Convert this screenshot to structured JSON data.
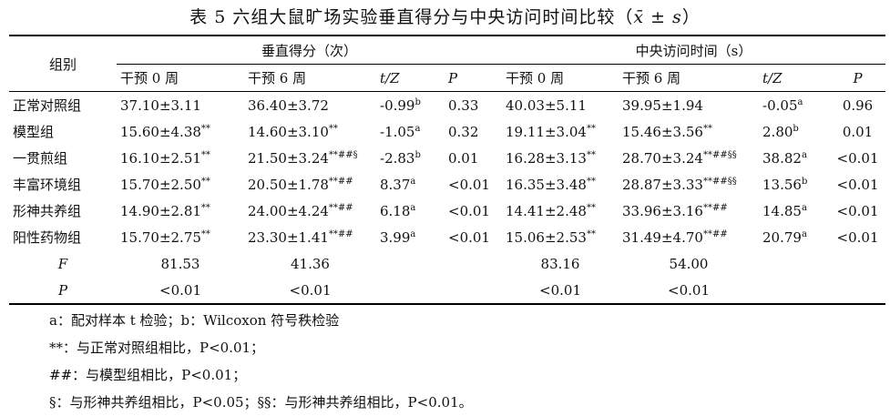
{
  "title": "表 5  六组大鼠旷场实验垂直得分与中央访问时间比较（x̄ ± s）",
  "header": {
    "group": "组别",
    "vertical": "垂直得分（次）",
    "central": "中央访问时间（s）",
    "sub": [
      "干预 0 周",
      "干预 6 周",
      "t/Z",
      "P",
      "干预 0 周",
      "干预 6 周",
      "t/Z",
      "P"
    ]
  },
  "rows": [
    {
      "name": "正常对照组",
      "v0": "37.10±3.11",
      "v0s": "",
      "v6": "36.40±3.72",
      "v6s": "",
      "vt": "-0.99",
      "vts": "b",
      "vp": "0.33",
      "c0": "40.03±5.11",
      "c0s": "",
      "c6": "39.95±1.94",
      "c6s": "",
      "ct": "-0.05",
      "cts": "a",
      "cp": "0.96"
    },
    {
      "name": "模型组",
      "v0": "15.60±4.38",
      "v0s": "**",
      "v6": "14.60±3.10",
      "v6s": "**",
      "vt": "-1.05",
      "vts": "a",
      "vp": "0.32",
      "c0": "19.11±3.04",
      "c0s": "**",
      "c6": "15.46±3.56",
      "c6s": "**",
      "ct": "2.80",
      "cts": "b",
      "cp": "0.01"
    },
    {
      "name": "一贯煎组",
      "v0": "16.10±2.51",
      "v0s": "**",
      "v6": "21.50±3.24",
      "v6s": "**##§",
      "vt": "-2.83",
      "vts": "b",
      "vp": "0.01",
      "c0": "16.28±3.13",
      "c0s": "**",
      "c6": "28.70±3.24",
      "c6s": "**##§§",
      "ct": "38.82",
      "cts": "a",
      "cp": "<0.01"
    },
    {
      "name": "丰富环境组",
      "v0": "15.70±2.50",
      "v0s": "**",
      "v6": "20.50±1.78",
      "v6s": "**##",
      "vt": "8.37",
      "vts": "a",
      "vp": "<0.01",
      "c0": "16.35±3.48",
      "c0s": "**",
      "c6": "28.87±3.33",
      "c6s": "**##§§",
      "ct": "13.56",
      "cts": "b",
      "cp": "<0.01"
    },
    {
      "name": "形神共养组",
      "v0": "14.90±2.81",
      "v0s": "**",
      "v6": "24.00±4.24",
      "v6s": "**##",
      "vt": "6.18",
      "vts": "a",
      "vp": "<0.01",
      "c0": "14.41±2.48",
      "c0s": "**",
      "c6": "33.96±3.16",
      "c6s": "**##",
      "ct": "14.85",
      "cts": "a",
      "cp": "<0.01"
    },
    {
      "name": "阳性药物组",
      "v0": "15.70±2.75",
      "v0s": "**",
      "v6": "23.30±1.41",
      "v6s": "**##",
      "vt": "3.99",
      "vts": "a",
      "vp": "<0.01",
      "c0": "15.06±2.53",
      "c0s": "**",
      "c6": "31.49±4.70",
      "c6s": "**##",
      "ct": "20.79",
      "cts": "a",
      "cp": "<0.01"
    }
  ],
  "f_row": {
    "label": "F",
    "v0": "81.53",
    "v6": "41.36",
    "c0": "83.16",
    "c6": "54.00"
  },
  "p_row": {
    "label": "P",
    "v0": "<0.01",
    "v6": "<0.01",
    "c0": "<0.01",
    "c6": "<0.01"
  },
  "notes": [
    "a：配对样本 t 检验；b：Wilcoxon 符号秩检验",
    "**：与正常对照组相比，P<0.01；",
    "##：与模型组相比，P<0.01；",
    "§：与形神共养组相比，P<0.05；§§：与形神共养组相比，P<0.01。"
  ]
}
